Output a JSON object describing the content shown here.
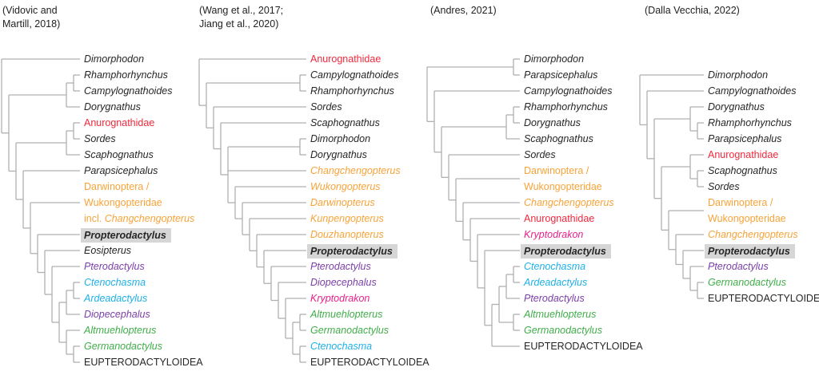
{
  "colors": {
    "dark": "#262626",
    "red": "#f0283c",
    "orange": "#f7a33a",
    "purple": "#7b3fa9",
    "cyan": "#1eb0e8",
    "green": "#40ae4a",
    "magenta": "#e8208c",
    "line": "#b0b0b0",
    "highlight": "#d6d6d6"
  },
  "trees": [
    {
      "title": "(Vidovic and\nMartill, 2018)",
      "tree": [
        {
          "name": "Dimorphodon",
          "color": "dark"
        },
        [
          [
            [
              {
                "name": "Rhamphorhynchus",
                "color": "dark"
              },
              {
                "name": "Campylognathoides",
                "color": "dark"
              }
            ],
            {
              "name": "Dorygnathus",
              "color": "dark"
            }
          ],
          [
            [
              [
                {
                  "name": "Anurognathidae",
                  "color": "red",
                  "italic": false
                },
                {
                  "name": "Sordes",
                  "color": "dark"
                }
              ],
              {
                "name": "Scaphognathus",
                "color": "dark"
              }
            ],
            [
              {
                "name": "Parapsicephalus",
                "color": "dark"
              },
              [
                {
                  "name": "Darwinoptera / Wukongopteridae incl. Changchengopterus",
                  "color": "orange",
                  "italic": false,
                  "lines": [
                    "Darwinoptera /",
                    "Wukongopteridae",
                    [
                      "incl. ",
                      "Changchengopterus"
                    ]
                  ]
                },
                [
                  {
                    "name": "Propterodactylus",
                    "color": "dark",
                    "bold": true,
                    "highlight": true
                  },
                  [
                    {
                      "name": "Eosipterus",
                      "color": "dark"
                    },
                    [
                      {
                        "name": "Pterodactylus",
                        "color": "purple"
                      },
                      [
                        [
                          [
                            {
                              "name": "Ctenochasma",
                              "color": "cyan"
                            },
                            {
                              "name": "Ardeadactylus",
                              "color": "cyan"
                            }
                          ],
                          {
                            "name": "Diopecephalus",
                            "color": "purple"
                          }
                        ],
                        [
                          {
                            "name": "Altmuehlopterus",
                            "color": "green"
                          },
                          [
                            {
                              "name": "Germanodactylus",
                              "color": "green"
                            },
                            {
                              "name": "EUPTERODACTYLOIDEA",
                              "color": "dark",
                              "italic": false
                            }
                          ]
                        ]
                      ]
                    ]
                  ]
                ]
              ]
            ]
          ]
        ]
      ]
    },
    {
      "title": "(Wang et al., 2017;\nJiang et al., 2020)",
      "tree": [
        {
          "name": "Anurognathidae",
          "color": "red",
          "italic": false
        },
        [
          [
            {
              "name": "Campylognathoides",
              "color": "dark"
            },
            {
              "name": "Rhamphorhynchus",
              "color": "dark"
            }
          ],
          [
            {
              "name": "Sordes",
              "color": "dark"
            },
            [
              {
                "name": "Scaphognathus",
                "color": "dark"
              },
              [
                [
                  {
                    "name": "Dimorphodon",
                    "color": "dark"
                  },
                  {
                    "name": "Dorygnathus",
                    "color": "dark"
                  }
                ],
                {
                  "name": "Changchengopterus",
                  "color": "orange"
                },
                [
                  {
                    "name": "Wukongopterus",
                    "color": "orange"
                  },
                  [
                    {
                      "name": "Darwinopterus",
                      "color": "orange"
                    },
                    [
                      {
                        "name": "Kunpengopterus",
                        "color": "orange"
                      },
                      [
                        {
                          "name": "Douzhanopterus",
                          "color": "orange"
                        },
                        [
                          {
                            "name": "Propterodactylus",
                            "color": "dark",
                            "bold": true,
                            "highlight": true
                          },
                          [
                            {
                              "name": "Pterodactylus",
                              "color": "purple"
                            },
                            [
                              {
                                "name": "Diopecephalus",
                                "color": "purple"
                              },
                              [
                                {
                                  "name": "Kryptodrakon",
                                  "color": "magenta"
                                },
                                [
                                  [
                                    {
                                      "name": "Altmuehlopterus",
                                      "color": "green"
                                    },
                                    {
                                      "name": "Germanodactylus",
                                      "color": "green"
                                    }
                                  ],
                                  [
                                    {
                                      "name": "Ctenochasma",
                                      "color": "cyan"
                                    },
                                    {
                                      "name": "EUPTERODACTYLOIDEA",
                                      "color": "dark",
                                      "italic": false
                                    }
                                  ]
                                ]
                              ]
                            ]
                          ]
                        ]
                      ]
                    ]
                  ]
                ]
              ]
            ]
          ]
        ]
      ]
    },
    {
      "title": "(Andres, 2021)",
      "tree": [
        [
          {
            "name": "Dimorphodon",
            "color": "dark"
          },
          {
            "name": "Parapsicephalus",
            "color": "dark"
          }
        ],
        [
          {
            "name": "Campylognathoides",
            "color": "dark"
          },
          [
            [
              [
                {
                  "name": "Rhamphorhynchus",
                  "color": "dark"
                },
                {
                  "name": "Dorygnathus",
                  "color": "dark"
                }
              ],
              {
                "name": "Scaphognathus",
                "color": "dark"
              }
            ],
            [
              {
                "name": "Sordes",
                "color": "dark"
              },
              [
                {
                  "name": "Darwinoptera / Wukongopteridae",
                  "color": "orange",
                  "italic": false,
                  "lines": [
                    "Darwinoptera /",
                    "Wukongopteridae"
                  ]
                },
                [
                  {
                    "name": "Changchengopterus",
                    "color": "orange"
                  },
                  [
                    {
                      "name": "Anurognathidae",
                      "color": "red",
                      "italic": false
                    },
                    [
                      {
                        "name": "Kryptodrakon",
                        "color": "magenta"
                      },
                      [
                        {
                          "name": "Propterodactylus",
                          "color": "dark",
                          "bold": true,
                          "highlight": true
                        },
                        [
                          [
                            [
                              [
                                {
                                  "name": "Ctenochasma",
                                  "color": "cyan"
                                },
                                {
                                  "name": "Ardeadactylus",
                                  "color": "cyan"
                                }
                              ],
                              {
                                "name": "Pterodactylus",
                                "color": "purple"
                              }
                            ],
                            [
                              {
                                "name": "Altmuehlopterus",
                                "color": "green"
                              },
                              {
                                "name": "Germanodactylus",
                                "color": "green"
                              }
                            ]
                          ],
                          {
                            "name": "EUPTERODACTYLOIDEA",
                            "color": "dark",
                            "italic": false
                          }
                        ]
                      ]
                    ]
                  ]
                ]
              ]
            ]
          ]
        ]
      ]
    },
    {
      "title": "(Dalla Vecchia, 2022)",
      "tree": [
        {
          "name": "Dimorphodon",
          "color": "dark"
        },
        [
          {
            "name": "Campylognathoides",
            "color": "dark"
          },
          [
            [
              {
                "name": "Dorygnathus",
                "color": "dark"
              },
              [
                {
                  "name": "Rhamphorhynchus",
                  "color": "dark"
                },
                {
                  "name": "Parapsicephalus",
                  "color": "dark"
                }
              ]
            ],
            [
              [
                {
                  "name": "Anurognathidae",
                  "color": "red",
                  "italic": false
                },
                [
                  {
                    "name": "Scaphognathus",
                    "color": "dark"
                  },
                  {
                    "name": "Sordes",
                    "color": "dark"
                  }
                ]
              ],
              [
                {
                  "name": "Darwinoptera / Wukongopteridae",
                  "color": "orange",
                  "italic": false,
                  "lines": [
                    "Darwinoptera /",
                    "Wukongopteridae"
                  ]
                },
                [
                  {
                    "name": "Changchengopterus",
                    "color": "orange"
                  },
                  [
                    {
                      "name": "Propterodactylus",
                      "color": "dark",
                      "bold": true,
                      "highlight": true
                    },
                    [
                      {
                        "name": "Pterodactylus",
                        "color": "purple"
                      },
                      [
                        {
                          "name": "Germanodactylus",
                          "color": "green"
                        },
                        {
                          "name": "EUPTERODACTYLOIDEA",
                          "color": "dark",
                          "italic": false
                        }
                      ]
                    ]
                  ]
                ]
              ]
            ]
          ]
        ]
      ]
    }
  ]
}
